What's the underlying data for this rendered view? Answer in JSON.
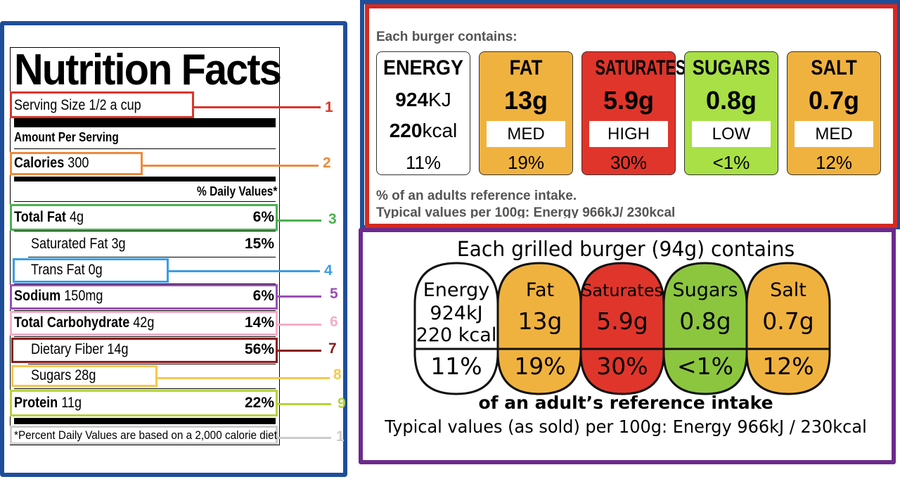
{
  "nutrition_facts": {
    "title": "Nutrition Facts",
    "serving_size": "Serving Size 1/2 a cup",
    "amount_per_serving": "Amount Per Serving",
    "calories_label": "Calories",
    "calories_value": "300",
    "daily_values_header": "% Daily Values*",
    "rows": [
      {
        "label": "Total Fat",
        "amount": "4g",
        "pct": "6%"
      },
      {
        "label": "Saturated Fat 3g",
        "amount": "",
        "pct": "15%"
      },
      {
        "label": "Trans Fat 0g",
        "amount": "",
        "pct": ""
      },
      {
        "label": "Sodium",
        "amount": "150mg",
        "pct": "6%"
      },
      {
        "label": "Total Carbohydrate",
        "amount": "42g",
        "pct": "14%"
      },
      {
        "label": "Dietary Fiber 14g",
        "amount": "",
        "pct": "56%"
      },
      {
        "label": "Sugars 28g",
        "amount": "",
        "pct": ""
      },
      {
        "label": "Protein",
        "amount": "11g",
        "pct": "22%"
      }
    ],
    "footnote": "*Percent Daily Values are based on a 2,000 calorie diet.",
    "callouts": [
      "1",
      "2",
      "3",
      "4",
      "5",
      "6",
      "7",
      "8",
      "9",
      "1"
    ],
    "callout_colors": [
      "#d9362c",
      "#f08a3c",
      "#4caf50",
      "#3a9ee6",
      "#9b4fb5",
      "#f4aec8",
      "#8b1a1a",
      "#f9c74f",
      "#b5d33c",
      "#cccccc"
    ]
  },
  "uk_label_plain": {
    "heading": "Each burger contains:",
    "energy": {
      "name": "ENERGY",
      "kj_num": "924",
      "kj_unit": "KJ",
      "kcal_num": "220",
      "kcal_unit": "kcal",
      "pct": "11%"
    },
    "nutrients": [
      {
        "name": "FAT",
        "value": "13g",
        "level": "MED",
        "pct": "19%",
        "color": "#f0b23e"
      },
      {
        "name": "SATURATES",
        "value": "5.9g",
        "level": "HIGH",
        "pct": "30%",
        "color": "#e0352b"
      },
      {
        "name": "SUGARS",
        "value": "0.8g",
        "level": "LOW",
        "pct": "<1%",
        "color": "#a8e045"
      },
      {
        "name": "SALT",
        "value": "0.7g",
        "level": "MED",
        "pct": "12%",
        "color": "#f0b23e"
      }
    ],
    "foot1": "% of an adults reference intake.",
    "foot2": "Typical values per 100g: Energy 966kJ/ 230kcal"
  },
  "uk_label_rounded": {
    "heading": "Each grilled burger (94g) contains",
    "energy": {
      "name": "Energy",
      "kj": "924kJ",
      "kcal": "220 kcal",
      "pct": "11%"
    },
    "nutrients": [
      {
        "name": "Fat",
        "value": "13g",
        "pct": "19%",
        "color": "#f0b23e"
      },
      {
        "name": "Saturates",
        "value": "5.9g",
        "pct": "30%",
        "color": "#e0352b"
      },
      {
        "name": "Sugars",
        "value": "0.8g",
        "pct": "<1%",
        "color": "#8cc63f"
      },
      {
        "name": "Salt",
        "value": "0.7g",
        "pct": "12%",
        "color": "#f0b23e"
      }
    ],
    "sub1": "of an adult’s reference intake",
    "sub2": "Typical values (as sold) per 100g: Energy 966kJ / 230kcal"
  }
}
